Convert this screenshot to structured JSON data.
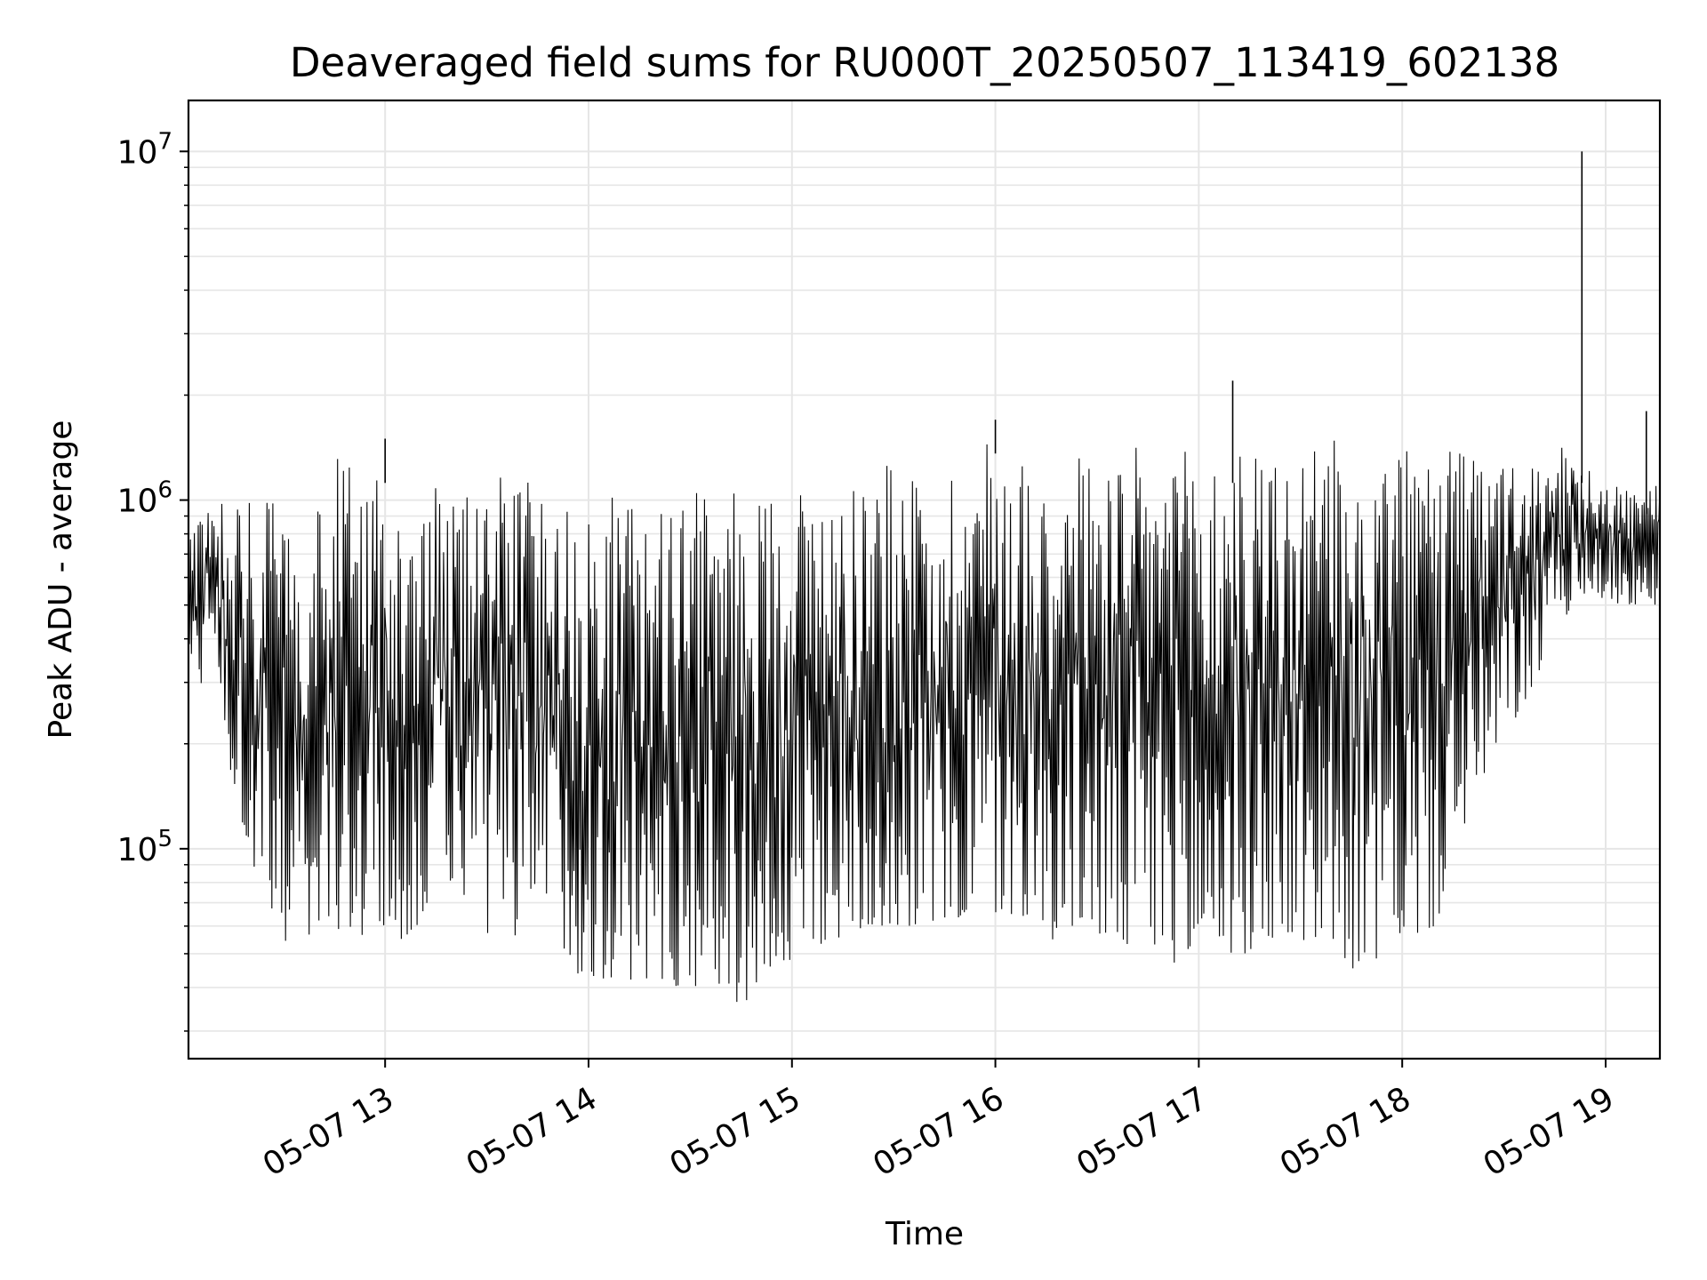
{
  "chart_data": {
    "type": "line",
    "title": "Deaveraged field sums for RU000T_20250507_113419_602138",
    "xlabel": "Time",
    "ylabel": "Peak ADU - average",
    "xscale": "time",
    "yscale": "log",
    "xlim": [
      "2025-05-07 12:02",
      "2025-05-07 19:16"
    ],
    "ylim": [
      25000,
      14000000
    ],
    "grid": true,
    "legend": "none",
    "line_color": "#000000",
    "grid_color": "#e6e6e6",
    "x_ticks": [
      "05-07 13",
      "05-07 14",
      "05-07 15",
      "05-07 16",
      "05-07 17",
      "05-07 18",
      "05-07 19"
    ],
    "y_ticks": [
      {
        "base": "10",
        "exp": "5",
        "value": 100000
      },
      {
        "base": "10",
        "exp": "6",
        "value": 1000000
      },
      {
        "base": "10",
        "exp": "7",
        "value": 10000000
      }
    ],
    "series": [
      {
        "x": [
          "2025-05-07 12:02",
          "2025-05-07 12:05",
          "2025-05-07 12:10",
          "2025-05-07 12:15",
          "2025-05-07 12:20",
          "2025-05-07 12:25",
          "2025-05-07 12:30",
          "2025-05-07 12:35",
          "2025-05-07 12:40",
          "2025-05-07 12:45",
          "2025-05-07 12:50",
          "2025-05-07 12:55",
          "2025-05-07 13:00",
          "2025-05-07 13:05",
          "2025-05-07 13:10",
          "2025-05-07 13:15",
          "2025-05-07 13:20",
          "2025-05-07 13:25",
          "2025-05-07 13:30",
          "2025-05-07 13:35",
          "2025-05-07 13:40",
          "2025-05-07 13:45",
          "2025-05-07 13:50",
          "2025-05-07 13:55",
          "2025-05-07 14:00",
          "2025-05-07 14:05",
          "2025-05-07 14:10",
          "2025-05-07 14:15",
          "2025-05-07 14:20",
          "2025-05-07 14:25",
          "2025-05-07 14:30",
          "2025-05-07 14:35",
          "2025-05-07 14:40",
          "2025-05-07 14:45",
          "2025-05-07 14:50",
          "2025-05-07 14:55",
          "2025-05-07 15:00",
          "2025-05-07 15:05",
          "2025-05-07 15:10",
          "2025-05-07 15:15",
          "2025-05-07 15:20",
          "2025-05-07 15:25",
          "2025-05-07 15:30",
          "2025-05-07 15:35",
          "2025-05-07 15:40",
          "2025-05-07 15:45",
          "2025-05-07 15:50",
          "2025-05-07 15:55",
          "2025-05-07 16:00",
          "2025-05-07 16:05",
          "2025-05-07 16:10",
          "2025-05-07 16:15",
          "2025-05-07 16:20",
          "2025-05-07 16:25",
          "2025-05-07 16:30",
          "2025-05-07 16:35",
          "2025-05-07 16:40",
          "2025-05-07 16:45",
          "2025-05-07 16:50",
          "2025-05-07 16:55",
          "2025-05-07 17:00",
          "2025-05-07 17:05",
          "2025-05-07 17:10",
          "2025-05-07 17:15",
          "2025-05-07 17:20",
          "2025-05-07 17:25",
          "2025-05-07 17:30",
          "2025-05-07 17:35",
          "2025-05-07 17:40",
          "2025-05-07 17:45",
          "2025-05-07 17:50",
          "2025-05-07 17:55",
          "2025-05-07 18:00",
          "2025-05-07 18:05",
          "2025-05-07 18:10",
          "2025-05-07 18:15",
          "2025-05-07 18:20",
          "2025-05-07 18:25",
          "2025-05-07 18:30",
          "2025-05-07 18:35",
          "2025-05-07 18:40",
          "2025-05-07 18:45",
          "2025-05-07 18:50",
          "2025-05-07 18:55",
          "2025-05-07 19:00",
          "2025-05-07 19:05",
          "2025-05-07 19:10",
          "2025-05-07 19:15"
        ],
        "y_low": [
          350000,
          280000,
          380000,
          150000,
          100000,
          65000,
          55000,
          50000,
          55000,
          55000,
          55000,
          55000,
          55000,
          55000,
          60000,
          70000,
          80000,
          70000,
          55000,
          55000,
          50000,
          65000,
          60000,
          45000,
          42000,
          42000,
          40000,
          40000,
          42000,
          40000,
          40000,
          40000,
          40000,
          35000,
          40000,
          42000,
          45000,
          45000,
          55000,
          55000,
          55000,
          60000,
          60000,
          60000,
          55000,
          60000,
          60000,
          60000,
          65000,
          60000,
          65000,
          55000,
          55000,
          60000,
          55000,
          50000,
          50000,
          45000,
          50000,
          45000,
          42000,
          45000,
          50000,
          50000,
          55000,
          55000,
          50000,
          55000,
          55000,
          45000,
          45000,
          50000,
          55000,
          55000,
          60000,
          90000,
          130000,
          150000,
          200000,
          250000,
          300000,
          400000,
          500000,
          550000,
          500000,
          500000,
          500000,
          500000
        ],
        "y_high": [
          800000,
          950000,
          1100000,
          1000000,
          1100000,
          1000000,
          950000,
          950000,
          1000000,
          1300000,
          1500000,
          1300000,
          1400000,
          750000,
          800000,
          1100000,
          1000000,
          1100000,
          1200000,
          1300000,
          1200000,
          1100000,
          1200000,
          1000000,
          900000,
          1000000,
          1100000,
          1000000,
          900000,
          1000000,
          1100000,
          1000000,
          1100000,
          1200000,
          1000000,
          1200000,
          1100000,
          1200000,
          1100000,
          1200000,
          1300000,
          1200000,
          1300000,
          1200000,
          1250000,
          1300000,
          1300000,
          1400000,
          1700000,
          1400000,
          1400000,
          1450000,
          1400000,
          1400000,
          1400000,
          1400000,
          1400000,
          1450000,
          1450000,
          1400000,
          1400000,
          1400000,
          1400000,
          1450000,
          1400000,
          1400000,
          1400000,
          1400000,
          1500000,
          1400000,
          1400000,
          1400000,
          1400000,
          1500000,
          1400000,
          1400000,
          1400000,
          1300000,
          1300000,
          1300000,
          1200000,
          1500000,
          1400000,
          1400000,
          1200000,
          1100000,
          1100000,
          1200000
        ],
        "spikes": [
          {
            "x": "2025-05-07 13:00",
            "y": 1500000
          },
          {
            "x": "2025-05-07 16:00",
            "y": 1700000
          },
          {
            "x": "2025-05-07 17:10",
            "y": 2200000
          },
          {
            "x": "2025-05-07 18:53",
            "y": 10000000
          },
          {
            "x": "2025-05-07 19:12",
            "y": 1800000
          }
        ]
      }
    ]
  }
}
